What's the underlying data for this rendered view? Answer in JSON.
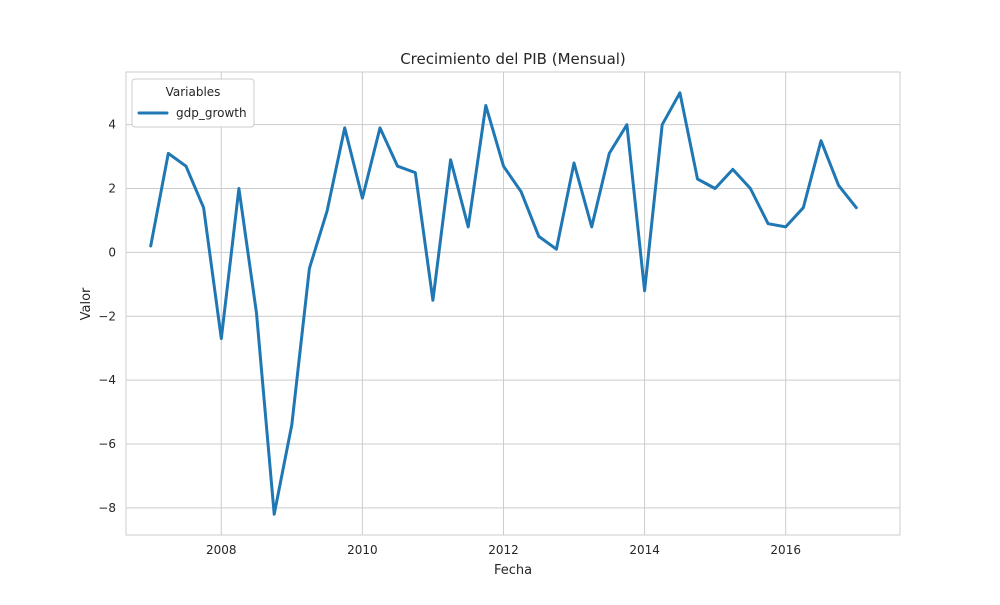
{
  "colors": {
    "series": "#1f77b4",
    "grid": "#cccccc",
    "axes_edge": "#cccccc",
    "background": "#ffffff"
  },
  "chart_data": {
    "type": "line",
    "title": "Crecimiento del PIB (Mensual)",
    "xlabel": "Fecha",
    "ylabel": "Valor",
    "xlim": [
      2006.65,
      2017.62
    ],
    "ylim": [
      -8.85,
      5.65
    ],
    "x_ticks": [
      2008,
      2010,
      2012,
      2014,
      2016
    ],
    "x_tick_labels": [
      "2008",
      "2010",
      "2012",
      "2014",
      "2016"
    ],
    "y_ticks": [
      -8,
      -6,
      -4,
      -2,
      0,
      2,
      4
    ],
    "y_tick_labels": [
      "−8",
      "−6",
      "−4",
      "−2",
      "0",
      "2",
      "4"
    ],
    "grid": true,
    "legend": {
      "title": "Variables",
      "position": "top-left",
      "entries": [
        "gdp_growth"
      ]
    },
    "series": [
      {
        "name": "gdp_growth",
        "x": [
          2007.0,
          2007.25,
          2007.5,
          2007.75,
          2008.0,
          2008.25,
          2008.5,
          2008.75,
          2009.0,
          2009.25,
          2009.5,
          2009.75,
          2010.0,
          2010.25,
          2010.5,
          2010.75,
          2011.0,
          2011.25,
          2011.5,
          2011.75,
          2012.0,
          2012.25,
          2012.5,
          2012.75,
          2013.0,
          2013.25,
          2013.5,
          2013.75,
          2014.0,
          2014.25,
          2014.5,
          2014.75,
          2015.0,
          2015.25,
          2015.5,
          2015.75,
          2016.0,
          2016.25,
          2016.5,
          2016.75,
          2017.0
        ],
        "values": [
          0.2,
          3.1,
          2.7,
          1.4,
          -2.7,
          2.0,
          -1.9,
          -8.2,
          -5.4,
          -0.5,
          1.3,
          3.9,
          1.7,
          3.9,
          2.7,
          2.5,
          -1.5,
          2.9,
          0.8,
          4.6,
          2.7,
          1.9,
          0.5,
          0.1,
          2.8,
          0.8,
          3.1,
          4.0,
          -1.2,
          4.0,
          5.0,
          2.3,
          2.0,
          2.6,
          2.0,
          0.9,
          0.8,
          1.4,
          3.5,
          2.1,
          1.4
        ]
      }
    ]
  }
}
